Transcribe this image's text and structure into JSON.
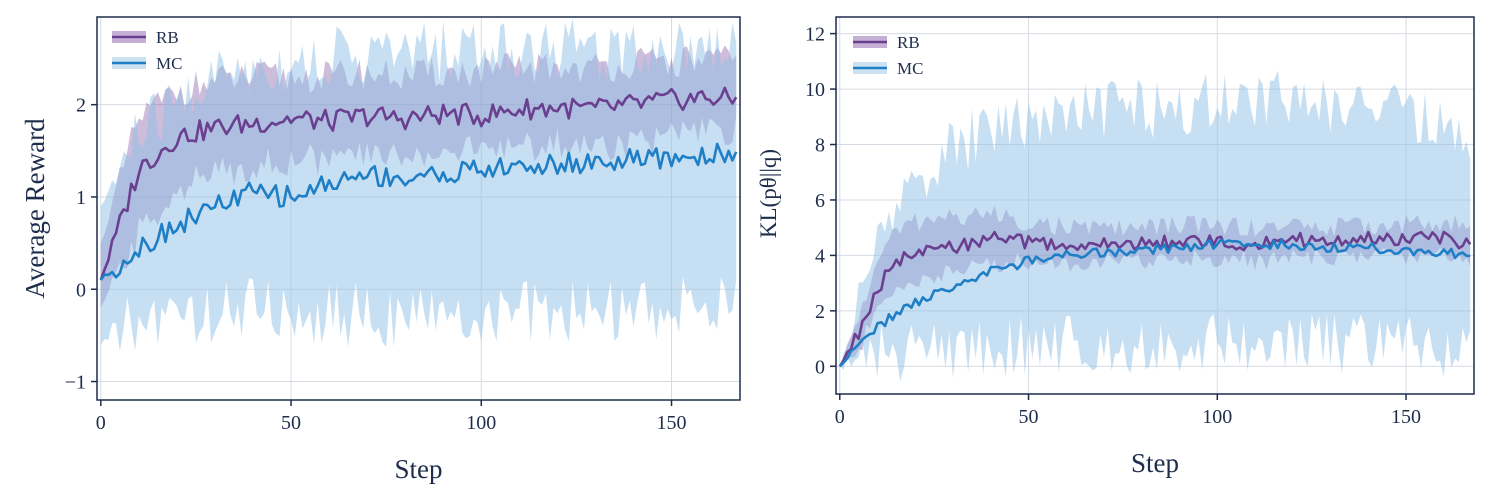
{
  "chart_data": [
    {
      "id": "left",
      "type": "line",
      "xlabel": "Step",
      "ylabel": "Average Reward",
      "xlim": [
        -1,
        168
      ],
      "ylim": [
        -1.2,
        2.95
      ],
      "xticks": [
        0,
        50,
        100,
        150
      ],
      "yticks": [
        -1,
        0,
        1,
        2
      ],
      "ytick_labels": [
        "−1",
        "0",
        "1",
        "2"
      ],
      "grid": true,
      "legend": "top-left",
      "series": [
        {
          "name": "RB",
          "color": "#6b3f8f",
          "band_color": "#7b4f9f",
          "x": [
            0,
            10,
            20,
            30,
            40,
            50,
            60,
            70,
            80,
            90,
            100,
            110,
            120,
            130,
            140,
            150,
            160,
            167
          ],
          "values": [
            0.1,
            1.3,
            1.65,
            1.75,
            1.8,
            1.85,
            1.82,
            1.88,
            1.85,
            1.9,
            1.88,
            1.95,
            1.97,
            1.95,
            2.0,
            2.05,
            2.08,
            2.05
          ],
          "lower": [
            -0.2,
            0.6,
            1.1,
            1.25,
            1.35,
            1.4,
            1.4,
            1.45,
            1.45,
            1.5,
            1.5,
            1.55,
            1.58,
            1.55,
            1.6,
            1.65,
            1.7,
            1.7
          ],
          "upper": [
            0.5,
            1.85,
            2.15,
            2.25,
            2.3,
            2.3,
            2.3,
            2.35,
            2.3,
            2.35,
            2.35,
            2.4,
            2.4,
            2.4,
            2.45,
            2.45,
            2.5,
            2.45
          ]
        },
        {
          "name": "MC",
          "color": "#1f7fc6",
          "band_color": "#8fbfe5",
          "x": [
            0,
            10,
            20,
            30,
            40,
            50,
            60,
            70,
            80,
            90,
            100,
            110,
            120,
            130,
            140,
            150,
            160,
            167
          ],
          "values": [
            0.1,
            0.45,
            0.7,
            0.9,
            1.05,
            1.0,
            1.15,
            1.25,
            1.2,
            1.25,
            1.3,
            1.32,
            1.35,
            1.38,
            1.4,
            1.42,
            1.45,
            1.5
          ],
          "lower": [
            -0.6,
            -0.35,
            -0.3,
            -0.25,
            -0.2,
            -0.25,
            -0.3,
            -0.25,
            -0.3,
            -0.35,
            -0.3,
            -0.25,
            -0.3,
            -0.2,
            -0.25,
            -0.2,
            -0.15,
            -0.1
          ],
          "upper": [
            0.9,
            1.7,
            2.0,
            2.3,
            2.4,
            2.45,
            2.5,
            2.55,
            2.55,
            2.6,
            2.6,
            2.6,
            2.62,
            2.6,
            2.62,
            2.65,
            2.65,
            2.65
          ]
        }
      ]
    },
    {
      "id": "right",
      "type": "line",
      "xlabel": "Step",
      "ylabel": "KL(pθ||q)",
      "xlim": [
        -1,
        168
      ],
      "ylim": [
        -1.0,
        12.6
      ],
      "xticks": [
        0,
        50,
        100,
        150
      ],
      "yticks": [
        0,
        2,
        4,
        6,
        8,
        10,
        12
      ],
      "ytick_labels": [
        "0",
        "2",
        "4",
        "6",
        "8",
        "10",
        "12"
      ],
      "grid": true,
      "legend": "top-left",
      "series": [
        {
          "name": "RB",
          "color": "#6b3f8f",
          "band_color": "#7b4f9f",
          "x": [
            0,
            5,
            10,
            15,
            20,
            30,
            40,
            50,
            60,
            70,
            80,
            90,
            100,
            110,
            120,
            130,
            140,
            150,
            160,
            167
          ],
          "values": [
            0.0,
            1.2,
            2.8,
            3.8,
            4.0,
            4.3,
            4.6,
            4.5,
            4.3,
            4.4,
            4.4,
            4.5,
            4.5,
            4.4,
            4.6,
            4.5,
            4.6,
            4.6,
            4.6,
            4.4
          ],
          "lower": [
            0.0,
            0.6,
            2.0,
            2.8,
            3.1,
            3.4,
            3.7,
            3.8,
            3.7,
            3.8,
            3.8,
            3.9,
            3.9,
            3.8,
            3.9,
            3.9,
            4.0,
            4.0,
            4.0,
            3.9
          ],
          "upper": [
            0.0,
            1.8,
            3.8,
            4.9,
            5.2,
            5.4,
            5.5,
            5.2,
            5.0,
            5.0,
            5.0,
            5.1,
            5.1,
            5.0,
            5.1,
            5.0,
            5.1,
            5.1,
            5.2,
            5.0
          ]
        },
        {
          "name": "MC",
          "color": "#1f7fc6",
          "band_color": "#8fbfe5",
          "x": [
            0,
            5,
            10,
            15,
            20,
            30,
            40,
            50,
            60,
            70,
            80,
            90,
            100,
            110,
            120,
            130,
            140,
            150,
            160,
            167
          ],
          "values": [
            0.0,
            0.8,
            1.4,
            1.9,
            2.3,
            2.9,
            3.4,
            3.8,
            4.0,
            4.1,
            4.2,
            4.3,
            4.4,
            4.4,
            4.4,
            4.3,
            4.3,
            4.2,
            4.1,
            4.0
          ],
          "lower": [
            0.0,
            0.2,
            0.4,
            0.5,
            0.6,
            0.6,
            0.7,
            0.7,
            0.8,
            0.8,
            0.8,
            0.8,
            0.9,
            0.9,
            0.8,
            0.8,
            0.8,
            0.8,
            0.7,
            0.6
          ],
          "upper": [
            0.0,
            2.2,
            4.5,
            5.8,
            6.8,
            7.8,
            8.6,
            9.0,
            9.1,
            9.2,
            9.3,
            9.4,
            9.5,
            9.6,
            9.6,
            9.5,
            9.4,
            9.3,
            8.5,
            7.8
          ]
        }
      ]
    }
  ]
}
